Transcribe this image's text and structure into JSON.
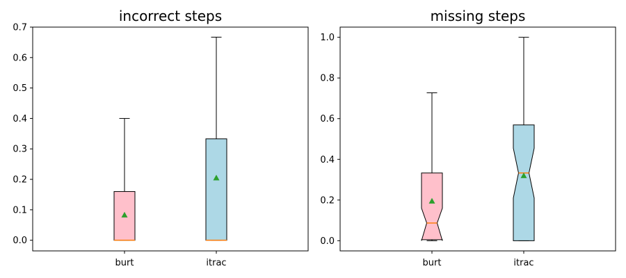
{
  "chart_data": [
    {
      "type": "boxplot",
      "title": "incorrect steps",
      "categories": [
        "burt",
        "itrac"
      ],
      "colors": [
        "#ffc0cb",
        "#add8e6"
      ],
      "mean_color": "#2ca02c",
      "median_color": "#ff7f0e",
      "notched": false,
      "ylim": [
        -0.035,
        0.7
      ],
      "yticks": [
        "0.0",
        "0.1",
        "0.2",
        "0.3",
        "0.4",
        "0.5",
        "0.6",
        "0.7"
      ],
      "boxes": [
        {
          "label": "burt",
          "whislo": 0.0,
          "q1": 0.0,
          "med": 0.0,
          "q3": 0.16,
          "whishi": 0.4,
          "mean": 0.083
        },
        {
          "label": "itrac",
          "whislo": 0.0,
          "q1": 0.0,
          "med": 0.0,
          "q3": 0.333,
          "whishi": 0.667,
          "mean": 0.205
        }
      ]
    },
    {
      "type": "boxplot",
      "title": "missing steps",
      "categories": [
        "burt",
        "itrac"
      ],
      "colors": [
        "#ffc0cb",
        "#add8e6"
      ],
      "mean_color": "#2ca02c",
      "median_color": "#ff7f0e",
      "notched": true,
      "ylim": [
        -0.05,
        1.05
      ],
      "yticks": [
        "0.0",
        "0.2",
        "0.4",
        "0.6",
        "0.8",
        "1.0"
      ],
      "boxes": [
        {
          "label": "burt",
          "whislo": 0.0,
          "q1": 0.005,
          "med": 0.087,
          "q3": 0.333,
          "whishi": 0.727,
          "mean": 0.195,
          "notch_lo": 0.0,
          "notch_hi": 0.16
        },
        {
          "label": "itrac",
          "whislo": 0.0,
          "q1": 0.0,
          "med": 0.333,
          "q3": 0.569,
          "whishi": 1.0,
          "mean": 0.32,
          "notch_lo": 0.21,
          "notch_hi": 0.455
        }
      ]
    }
  ]
}
